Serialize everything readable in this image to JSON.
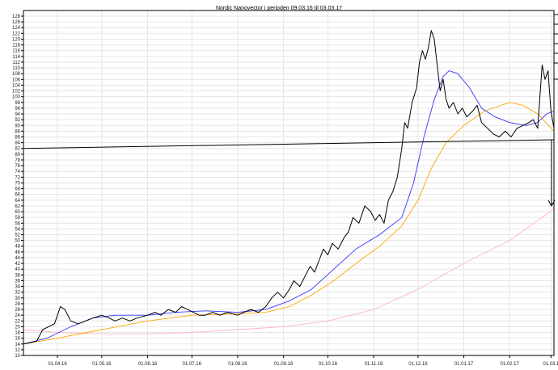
{
  "chart_data": {
    "type": "line",
    "title": "Nordic Nanovector i perioden 09.03.16 til 03.03.17",
    "xlabel": "",
    "ylabel": "",
    "ylim": [
      10,
      128
    ],
    "y_ticks": [
      10,
      12,
      14,
      16,
      18,
      20,
      22,
      24,
      26,
      28,
      30,
      32,
      34,
      36,
      38,
      40,
      42,
      44,
      46,
      48,
      50,
      52,
      54,
      56,
      58,
      60,
      62,
      64,
      66,
      68,
      70,
      72,
      74,
      76,
      78,
      80,
      82,
      84,
      86,
      88,
      90,
      92,
      94,
      96,
      98,
      100,
      102,
      104,
      106,
      108,
      110,
      112,
      114,
      116,
      118,
      120,
      122,
      124,
      126,
      128
    ],
    "x_range": [
      "2016-03-09",
      "2017-03-03"
    ],
    "x_ticks": [
      {
        "date": "2016-04-01",
        "label": "01.04.16"
      },
      {
        "date": "2016-05-01",
        "label": "01.05.16"
      },
      {
        "date": "2016-06-01",
        "label": "01.06.16"
      },
      {
        "date": "2016-07-01",
        "label": "01.07.16"
      },
      {
        "date": "2016-08-01",
        "label": "01.08.16"
      },
      {
        "date": "2016-09-01",
        "label": "01.09.16"
      },
      {
        "date": "2016-10-01",
        "label": "01.10.16"
      },
      {
        "date": "2016-11-01",
        "label": "01.11.16"
      },
      {
        "date": "2016-12-01",
        "label": "01.12.16"
      },
      {
        "date": "2017-01-01",
        "label": "01.01.17"
      },
      {
        "date": "2017-02-01",
        "label": "01.02.17"
      },
      {
        "date": "2017-03-01",
        "label": "01.03.1"
      }
    ],
    "grid": true,
    "series": [
      {
        "color": "#000000",
        "points": [
          [
            "2016-03-09",
            14
          ],
          [
            "2016-03-14",
            14.5
          ],
          [
            "2016-03-18",
            15
          ],
          [
            "2016-03-22",
            19
          ],
          [
            "2016-03-26",
            20
          ],
          [
            "2016-03-30",
            21
          ],
          [
            "2016-04-03",
            27
          ],
          [
            "2016-04-06",
            26
          ],
          [
            "2016-04-10",
            22
          ],
          [
            "2016-04-15",
            21
          ],
          [
            "2016-04-20",
            22
          ],
          [
            "2016-04-25",
            23
          ],
          [
            "2016-05-01",
            24
          ],
          [
            "2016-05-06",
            23
          ],
          [
            "2016-05-10",
            22
          ],
          [
            "2016-05-15",
            23
          ],
          [
            "2016-05-20",
            22
          ],
          [
            "2016-05-25",
            23
          ],
          [
            "2016-06-01",
            24
          ],
          [
            "2016-06-06",
            25
          ],
          [
            "2016-06-10",
            24
          ],
          [
            "2016-06-15",
            26
          ],
          [
            "2016-06-20",
            25
          ],
          [
            "2016-06-24",
            27
          ],
          [
            "2016-06-28",
            26
          ],
          [
            "2016-07-02",
            25
          ],
          [
            "2016-07-06",
            24
          ],
          [
            "2016-07-10",
            24
          ],
          [
            "2016-07-15",
            25
          ],
          [
            "2016-07-20",
            24
          ],
          [
            "2016-07-25",
            25
          ],
          [
            "2016-08-01",
            24
          ],
          [
            "2016-08-05",
            25
          ],
          [
            "2016-08-10",
            26
          ],
          [
            "2016-08-15",
            25
          ],
          [
            "2016-08-20",
            27
          ],
          [
            "2016-08-24",
            30
          ],
          [
            "2016-08-28",
            32
          ],
          [
            "2016-09-01",
            30
          ],
          [
            "2016-09-05",
            33
          ],
          [
            "2016-09-08",
            36
          ],
          [
            "2016-09-12",
            34
          ],
          [
            "2016-09-16",
            38
          ],
          [
            "2016-09-19",
            41
          ],
          [
            "2016-09-22",
            39
          ],
          [
            "2016-09-25",
            43
          ],
          [
            "2016-09-28",
            47
          ],
          [
            "2016-10-01",
            45
          ],
          [
            "2016-10-04",
            49
          ],
          [
            "2016-10-08",
            47
          ],
          [
            "2016-10-12",
            51
          ],
          [
            "2016-10-15",
            53
          ],
          [
            "2016-10-18",
            58
          ],
          [
            "2016-10-22",
            56
          ],
          [
            "2016-10-26",
            62
          ],
          [
            "2016-10-30",
            60
          ],
          [
            "2016-11-02",
            57
          ],
          [
            "2016-11-05",
            59
          ],
          [
            "2016-11-08",
            56
          ],
          [
            "2016-11-11",
            64
          ],
          [
            "2016-11-14",
            67
          ],
          [
            "2016-11-17",
            72
          ],
          [
            "2016-11-20",
            82
          ],
          [
            "2016-11-22",
            91
          ],
          [
            "2016-11-24",
            89
          ],
          [
            "2016-11-27",
            98
          ],
          [
            "2016-11-30",
            103
          ],
          [
            "2016-12-02",
            112
          ],
          [
            "2016-12-04",
            116
          ],
          [
            "2016-12-06",
            113
          ],
          [
            "2016-12-08",
            117
          ],
          [
            "2016-12-10",
            123
          ],
          [
            "2016-12-12",
            120
          ],
          [
            "2016-12-14",
            111
          ],
          [
            "2016-12-16",
            102
          ],
          [
            "2016-12-18",
            106
          ],
          [
            "2016-12-20",
            99
          ],
          [
            "2016-12-22",
            96
          ],
          [
            "2016-12-25",
            98
          ],
          [
            "2016-12-28",
            94
          ],
          [
            "2016-12-31",
            96
          ],
          [
            "2017-01-03",
            93
          ],
          [
            "2017-01-07",
            95
          ],
          [
            "2017-01-10",
            97
          ],
          [
            "2017-01-13",
            91
          ],
          [
            "2017-01-17",
            89
          ],
          [
            "2017-01-21",
            87
          ],
          [
            "2017-01-25",
            86
          ],
          [
            "2017-01-29",
            88
          ],
          [
            "2017-02-02",
            86
          ],
          [
            "2017-02-06",
            89
          ],
          [
            "2017-02-10",
            90
          ],
          [
            "2017-02-14",
            91
          ],
          [
            "2017-02-17",
            92
          ],
          [
            "2017-02-20",
            89
          ],
          [
            "2017-02-23",
            111
          ],
          [
            "2017-02-25",
            106
          ],
          [
            "2017-02-27",
            109
          ],
          [
            "2017-03-01",
            95
          ],
          [
            "2017-03-03",
            89
          ]
        ]
      },
      {
        "color": "#3333ff",
        "points": [
          [
            "2016-03-09",
            14
          ],
          [
            "2016-03-25",
            16
          ],
          [
            "2016-04-10",
            20
          ],
          [
            "2016-04-25",
            23
          ],
          [
            "2016-05-10",
            24
          ],
          [
            "2016-06-01",
            24
          ],
          [
            "2016-06-20",
            25
          ],
          [
            "2016-07-10",
            25.5
          ],
          [
            "2016-08-01",
            25
          ],
          [
            "2016-08-20",
            26
          ],
          [
            "2016-09-05",
            29
          ],
          [
            "2016-09-20",
            33
          ],
          [
            "2016-10-05",
            40
          ],
          [
            "2016-10-20",
            47
          ],
          [
            "2016-11-05",
            52
          ],
          [
            "2016-11-20",
            58
          ],
          [
            "2016-11-28",
            70
          ],
          [
            "2016-12-05",
            86
          ],
          [
            "2016-12-12",
            99
          ],
          [
            "2016-12-18",
            107
          ],
          [
            "2016-12-22",
            109
          ],
          [
            "2016-12-28",
            108
          ],
          [
            "2017-01-05",
            103
          ],
          [
            "2017-01-13",
            96
          ],
          [
            "2017-01-22",
            93
          ],
          [
            "2017-02-01",
            91
          ],
          [
            "2017-02-12",
            90
          ],
          [
            "2017-02-20",
            91
          ],
          [
            "2017-02-26",
            94
          ],
          [
            "2017-03-03",
            95
          ]
        ]
      },
      {
        "color": "#ffa500",
        "points": [
          [
            "2016-03-09",
            14
          ],
          [
            "2016-04-01",
            16
          ],
          [
            "2016-05-01",
            19
          ],
          [
            "2016-06-01",
            22
          ],
          [
            "2016-07-01",
            24
          ],
          [
            "2016-08-01",
            24.5
          ],
          [
            "2016-08-20",
            25
          ],
          [
            "2016-09-05",
            27
          ],
          [
            "2016-09-20",
            31
          ],
          [
            "2016-10-05",
            36
          ],
          [
            "2016-10-20",
            42
          ],
          [
            "2016-11-05",
            48
          ],
          [
            "2016-11-20",
            55
          ],
          [
            "2016-12-01",
            64
          ],
          [
            "2016-12-10",
            75
          ],
          [
            "2016-12-20",
            84
          ],
          [
            "2017-01-01",
            90
          ],
          [
            "2017-01-15",
            95
          ],
          [
            "2017-02-01",
            98
          ],
          [
            "2017-02-10",
            97
          ],
          [
            "2017-02-20",
            94
          ],
          [
            "2017-03-03",
            88
          ]
        ]
      },
      {
        "color": "#ffb6c1",
        "points": [
          [
            "2016-03-09",
            19
          ],
          [
            "2016-04-01",
            18
          ],
          [
            "2016-05-01",
            17.5
          ],
          [
            "2016-06-01",
            17.5
          ],
          [
            "2016-07-01",
            18
          ],
          [
            "2016-08-01",
            19
          ],
          [
            "2016-09-01",
            20
          ],
          [
            "2016-10-01",
            22
          ],
          [
            "2016-11-01",
            26
          ],
          [
            "2016-12-01",
            33
          ],
          [
            "2017-01-01",
            42
          ],
          [
            "2017-02-01",
            50
          ],
          [
            "2017-03-03",
            61
          ]
        ]
      }
    ],
    "trendline": {
      "color": "#000000",
      "from": [
        "2016-03-09",
        82
      ],
      "to": [
        "2017-03-03",
        85
      ]
    },
    "arrow": {
      "color": "#000000",
      "date": "2017-03-03",
      "from": 85,
      "to": 62
    }
  }
}
